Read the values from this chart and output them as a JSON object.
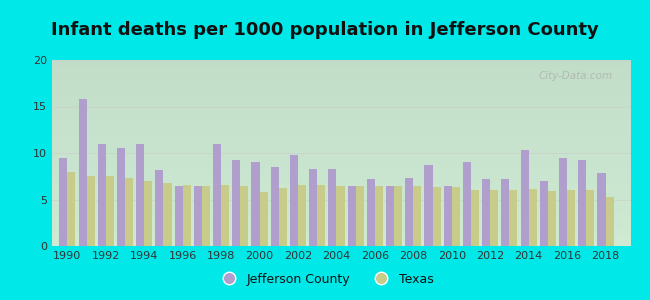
{
  "title": "Infant deaths per 1000 population in Jefferson County",
  "years": [
    1990,
    1991,
    1992,
    1993,
    1994,
    1995,
    1996,
    1997,
    1998,
    1999,
    2000,
    2001,
    2002,
    2003,
    2004,
    2005,
    2006,
    2007,
    2008,
    2009,
    2010,
    2011,
    2012,
    2013,
    2014,
    2015,
    2016,
    2017,
    2018
  ],
  "jefferson": [
    9.5,
    15.8,
    11.0,
    10.5,
    11.0,
    8.2,
    6.5,
    6.5,
    11.0,
    9.2,
    9.0,
    8.5,
    9.8,
    8.3,
    8.3,
    6.5,
    7.2,
    6.5,
    7.3,
    8.7,
    6.5,
    9.0,
    7.2,
    7.2,
    10.3,
    7.0,
    9.5,
    9.3,
    7.9
  ],
  "texas": [
    8.0,
    7.5,
    7.5,
    7.3,
    7.0,
    6.8,
    6.6,
    6.5,
    6.6,
    6.5,
    5.8,
    6.2,
    6.6,
    6.6,
    6.5,
    6.5,
    6.4,
    6.5,
    6.5,
    6.3,
    6.3,
    6.0,
    6.0,
    6.0,
    6.1,
    5.9,
    6.0,
    6.0,
    5.3
  ],
  "jefferson_color": "#b09fcc",
  "texas_color": "#c8cc8a",
  "background_outer": "#00e8e8",
  "ylim": [
    0,
    20
  ],
  "yticks": [
    0,
    5,
    10,
    15,
    20
  ],
  "xticks": [
    1990,
    1992,
    1994,
    1996,
    1998,
    2000,
    2002,
    2004,
    2006,
    2008,
    2010,
    2012,
    2014,
    2016,
    2018
  ],
  "title_fontsize": 13,
  "bar_width": 0.42,
  "legend_labels": [
    "Jefferson County",
    "Texas"
  ],
  "watermark": "City-Data.com",
  "grid_color": "#cccccc",
  "tick_fontsize": 8
}
